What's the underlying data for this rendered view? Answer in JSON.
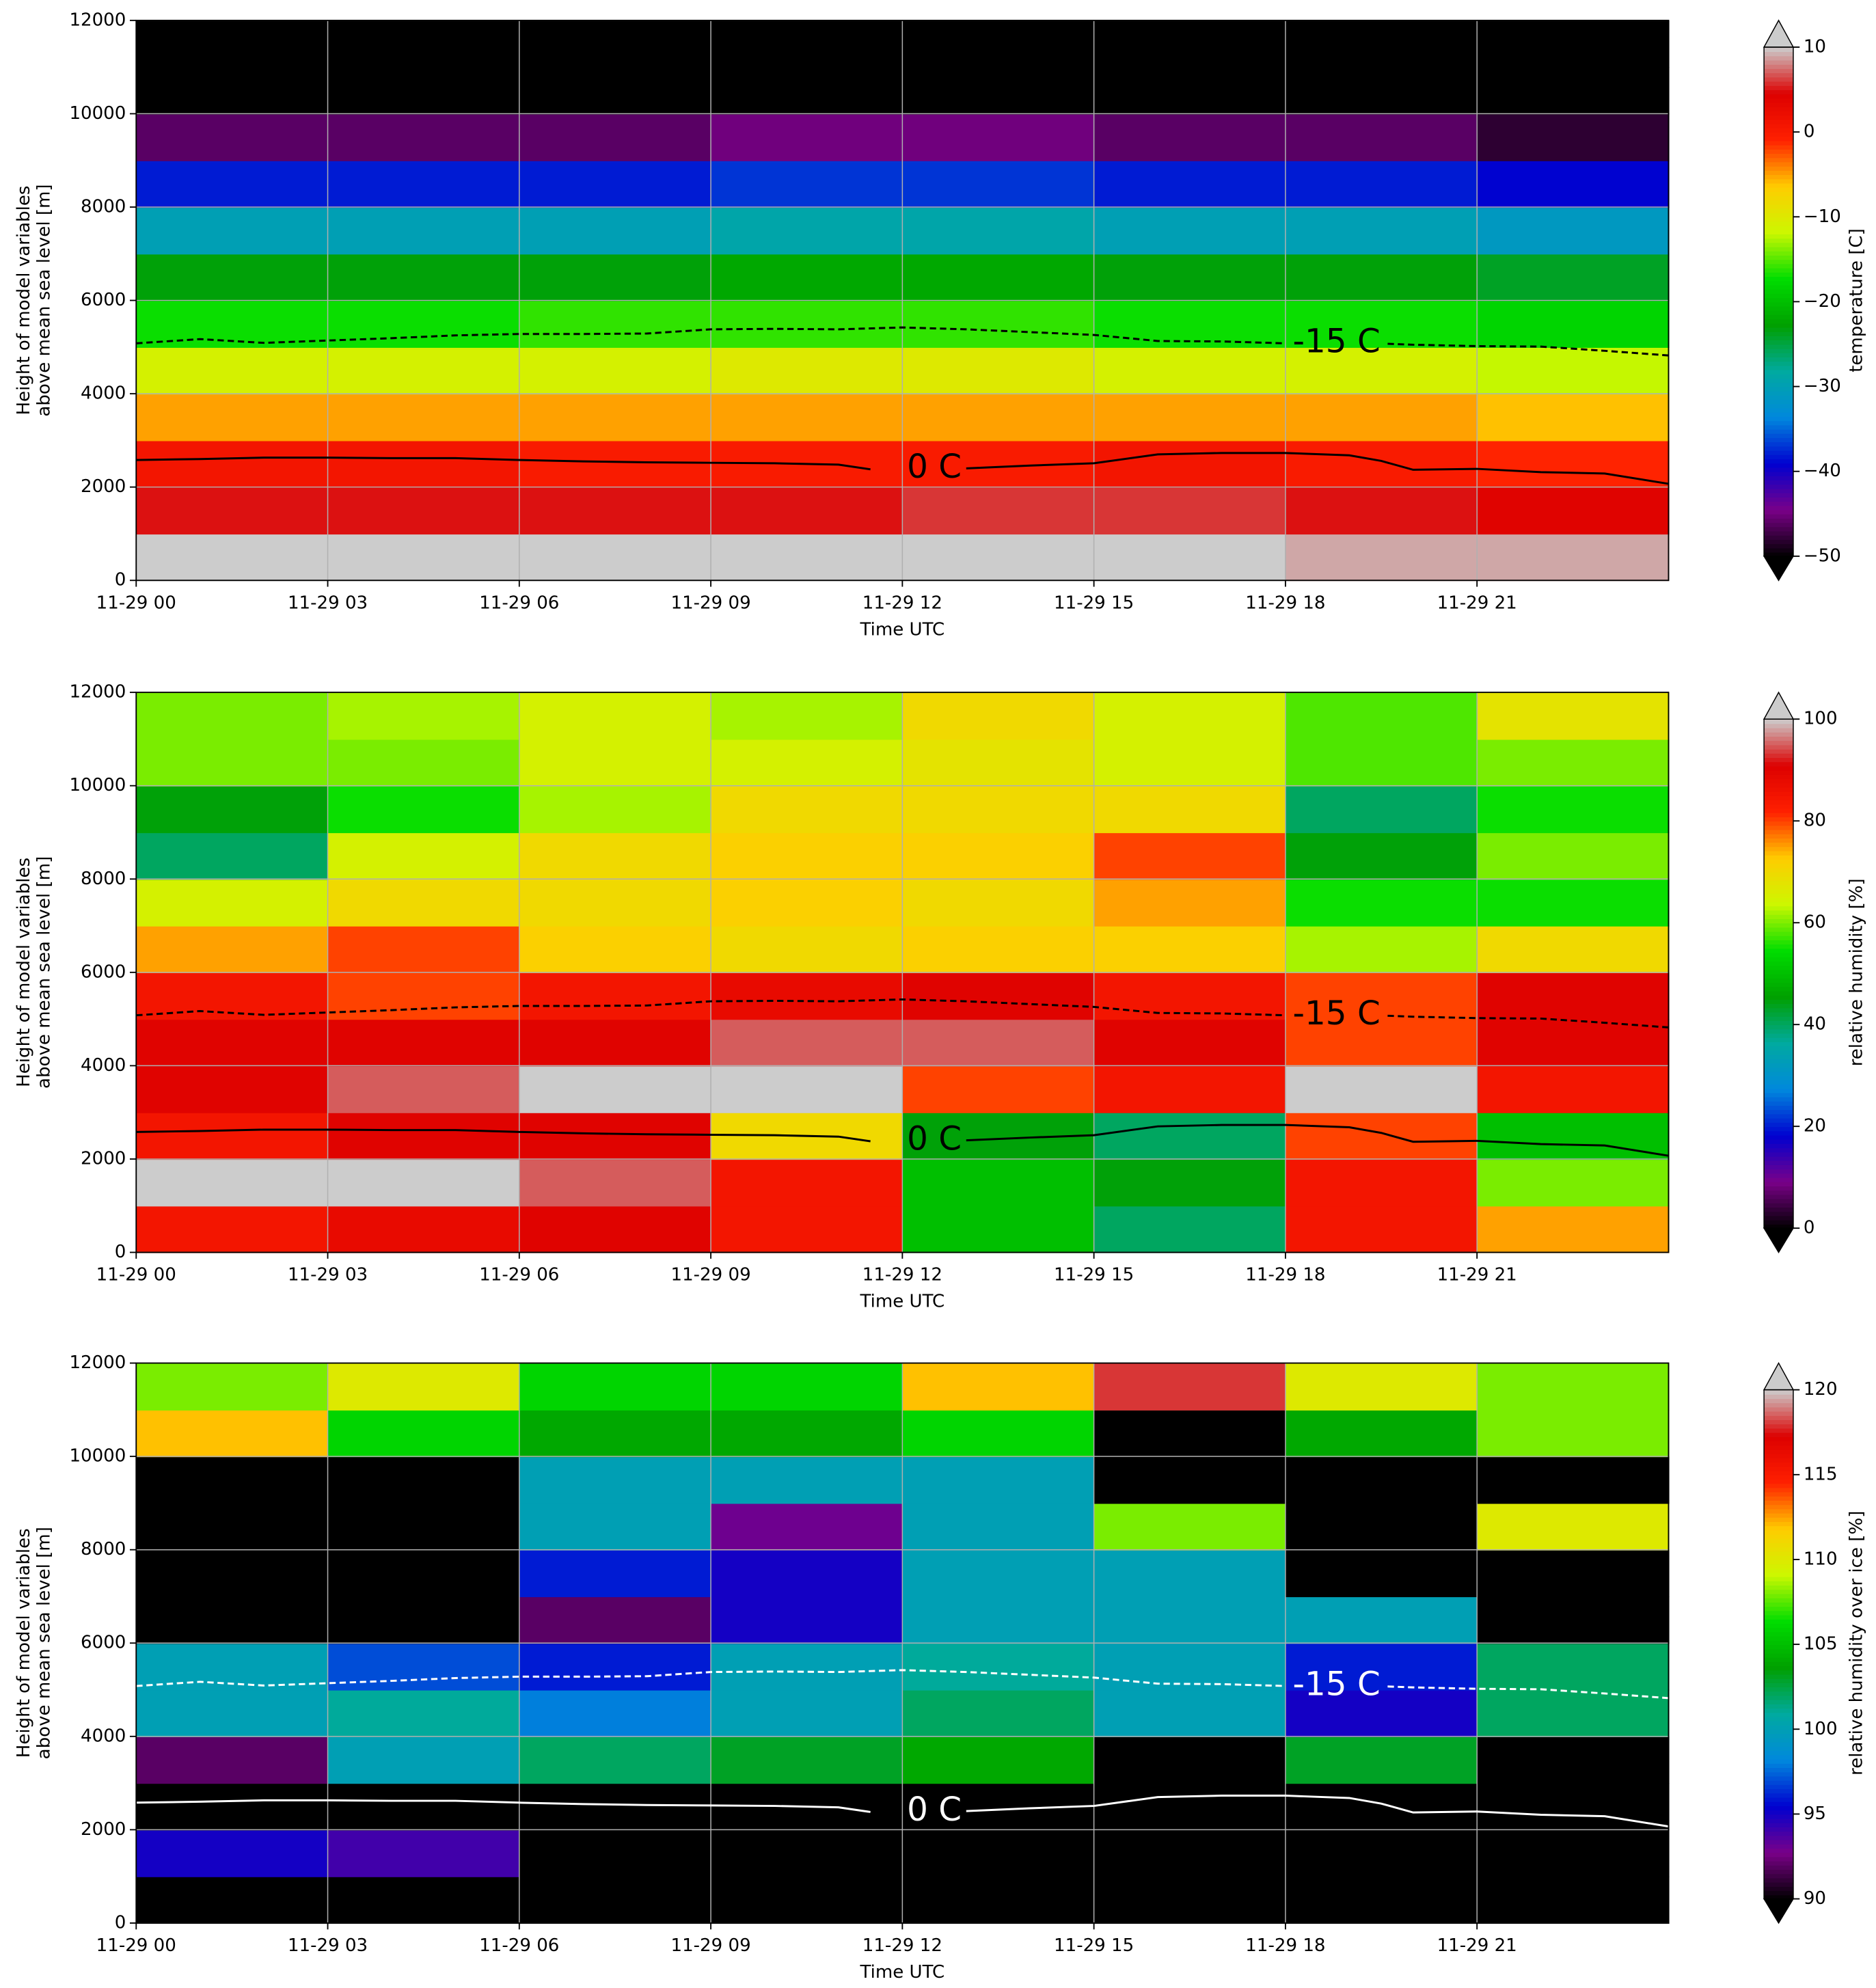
{
  "chart_data": [
    {
      "type": "heatmap",
      "xlabel": "Time UTC",
      "ylabel": [
        "Height of model variables",
        "above mean sea level [m]"
      ],
      "xlim": [
        0,
        24
      ],
      "ylim": [
        0,
        12000
      ],
      "xticks": [
        {
          "value": 0,
          "label": "11-29 00"
        },
        {
          "value": 3,
          "label": "11-29 03"
        },
        {
          "value": 6,
          "label": "11-29 06"
        },
        {
          "value": 9,
          "label": "11-29 09"
        },
        {
          "value": 12,
          "label": "11-29 12"
        },
        {
          "value": 15,
          "label": "11-29 15"
        },
        {
          "value": 18,
          "label": "11-29 18"
        },
        {
          "value": 21,
          "label": "11-29 21"
        }
      ],
      "yticks": [
        0,
        2000,
        4000,
        6000,
        8000,
        10000,
        12000
      ],
      "grid": true,
      "x_bins": [
        0,
        3,
        6,
        9,
        12,
        15,
        18,
        21,
        24
      ],
      "y_bins": [
        0,
        1000,
        2000,
        3000,
        4000,
        5000,
        6000,
        7000,
        8000,
        9000,
        10000,
        11000,
        12000
      ],
      "z": [
        [
          11,
          11,
          11,
          11,
          12,
          11,
          9,
          9
        ],
        [
          5,
          5,
          5,
          5,
          6,
          6,
          5,
          4
        ],
        [
          1,
          1,
          0,
          0,
          0,
          1,
          0,
          -1
        ],
        [
          -5,
          -5,
          -5,
          -5,
          -5,
          -5,
          -5,
          -6
        ],
        [
          -11,
          -11,
          -11,
          -10,
          -10,
          -11,
          -11,
          -12
        ],
        [
          -17,
          -17,
          -16,
          -16,
          -16,
          -17,
          -17,
          -18
        ],
        [
          -23,
          -23,
          -23,
          -22,
          -22,
          -23,
          -23,
          -24
        ],
        [
          -30,
          -30,
          -30,
          -29,
          -29,
          -30,
          -30,
          -31
        ],
        [
          -38,
          -38,
          -38,
          -37,
          -37,
          -38,
          -38,
          -39
        ],
        [
          -46,
          -46,
          -46,
          -45,
          -45,
          -46,
          -46,
          -48
        ],
        [
          -55,
          -55,
          -55,
          -55,
          -55,
          -55,
          -55,
          -55
        ],
        [
          -58,
          -58,
          -58,
          -58,
          -58,
          -58,
          -58,
          -58
        ]
      ],
      "colorbar": {
        "label": "temperature [C]",
        "clim": [
          -50,
          10
        ],
        "ticks": [
          {
            "value": -50,
            "label": "−50"
          },
          {
            "value": -40,
            "label": "−40"
          },
          {
            "value": -30,
            "label": "−30"
          },
          {
            "value": -20,
            "label": "−20"
          },
          {
            "value": -10,
            "label": "−10"
          },
          0,
          10
        ],
        "colors": [
          "#000000",
          "#7a0088",
          "#0000d0",
          "#0088dd",
          "#00aaa0",
          "#00a000",
          "#00dd00",
          "#ccf800",
          "#ffcc00",
          "#ff2000",
          "#dd0000",
          "#cccccc"
        ],
        "under": "#000000",
        "over": "#cccccc"
      },
      "contours": [
        {
          "label": "0 C",
          "color": "#000000",
          "dashed": false,
          "x": [
            0,
            1,
            2,
            3,
            4,
            5,
            6,
            7,
            8,
            9,
            10,
            11,
            11.5,
            12.5,
            13,
            14,
            15,
            16,
            17,
            18,
            19,
            19.5,
            20,
            21,
            22,
            23,
            24
          ],
          "y": [
            2580,
            2600,
            2630,
            2630,
            2620,
            2620,
            2580,
            2550,
            2530,
            2520,
            2510,
            2480,
            2380,
            null,
            2400,
            2460,
            2510,
            2700,
            2730,
            2730,
            2680,
            2560,
            2370,
            2390,
            2320,
            2290,
            2070
          ]
        },
        {
          "label": "-15 C",
          "color": "#000000",
          "dashed": true,
          "x": [
            0,
            1,
            2,
            3,
            4,
            5,
            6,
            7,
            8,
            9,
            10,
            11,
            12,
            13,
            14,
            15,
            16,
            17,
            18,
            18.8,
            19.6,
            20,
            21,
            22,
            23,
            24
          ],
          "y": [
            5080,
            5170,
            5090,
            5140,
            5190,
            5250,
            5280,
            5280,
            5290,
            5380,
            5390,
            5380,
            5420,
            5380,
            5320,
            5260,
            5130,
            5120,
            5080,
            null,
            5070,
            5050,
            5020,
            5010,
            4920,
            4820
          ]
        }
      ]
    },
    {
      "type": "heatmap",
      "xlabel": "Time UTC",
      "ylabel": [
        "Height of model variables",
        "above mean sea level [m]"
      ],
      "xlim": [
        0,
        24
      ],
      "ylim": [
        0,
        12000
      ],
      "xticks": [
        {
          "value": 0,
          "label": "11-29 00"
        },
        {
          "value": 3,
          "label": "11-29 03"
        },
        {
          "value": 6,
          "label": "11-29 06"
        },
        {
          "value": 9,
          "label": "11-29 09"
        },
        {
          "value": 12,
          "label": "11-29 12"
        },
        {
          "value": 15,
          "label": "11-29 15"
        },
        {
          "value": 18,
          "label": "11-29 18"
        },
        {
          "value": 21,
          "label": "11-29 21"
        }
      ],
      "yticks": [
        0,
        2000,
        4000,
        6000,
        8000,
        10000,
        12000
      ],
      "grid": true,
      "x_bins": [
        0,
        3,
        6,
        9,
        12,
        15,
        18,
        21,
        24
      ],
      "y_bins": [
        0,
        1000,
        2000,
        3000,
        4000,
        5000,
        6000,
        7000,
        8000,
        9000,
        10000,
        11000,
        12000
      ],
      "z": [
        [
          85,
          88,
          90,
          85,
          50,
          40,
          85,
          75
        ],
        [
          100,
          100,
          95,
          85,
          50,
          45,
          85,
          60
        ],
        [
          85,
          90,
          90,
          70,
          45,
          40,
          80,
          50
        ],
        [
          90,
          95,
          100,
          100,
          80,
          85,
          100,
          85
        ],
        [
          90,
          90,
          90,
          95,
          95,
          90,
          80,
          90
        ],
        [
          85,
          80,
          85,
          88,
          90,
          85,
          80,
          90
        ],
        [
          75,
          80,
          72,
          70,
          72,
          72,
          62,
          70
        ],
        [
          65,
          70,
          70,
          72,
          70,
          75,
          55,
          55
        ],
        [
          40,
          65,
          70,
          72,
          72,
          80,
          45,
          60
        ],
        [
          45,
          55,
          62,
          70,
          70,
          70,
          40,
          55
        ],
        [
          60,
          60,
          65,
          65,
          68,
          65,
          58,
          60
        ],
        [
          60,
          62,
          65,
          62,
          70,
          65,
          58,
          68
        ]
      ],
      "colorbar": {
        "label": "relative humidity [%]",
        "clim": [
          0,
          100
        ],
        "ticks": [
          0,
          20,
          40,
          60,
          80,
          100
        ],
        "colors": [
          "#000000",
          "#7a0088",
          "#0000d0",
          "#0088dd",
          "#00aaa0",
          "#00a000",
          "#00dd00",
          "#ccf800",
          "#ffcc00",
          "#ff2000",
          "#dd0000",
          "#cccccc"
        ],
        "under": "#000000",
        "over": "#cccccc"
      },
      "contours": [
        {
          "label": "0 C",
          "color": "#000000",
          "dashed": false,
          "x": [
            0,
            1,
            2,
            3,
            4,
            5,
            6,
            7,
            8,
            9,
            10,
            11,
            11.5,
            12.5,
            13,
            14,
            15,
            16,
            17,
            18,
            19,
            19.5,
            20,
            21,
            22,
            23,
            24
          ],
          "y": [
            2580,
            2600,
            2630,
            2630,
            2620,
            2620,
            2580,
            2550,
            2530,
            2520,
            2510,
            2480,
            2380,
            null,
            2400,
            2460,
            2510,
            2700,
            2730,
            2730,
            2680,
            2560,
            2370,
            2390,
            2320,
            2290,
            2070
          ]
        },
        {
          "label": "-15 C",
          "color": "#000000",
          "dashed": true,
          "x": [
            0,
            1,
            2,
            3,
            4,
            5,
            6,
            7,
            8,
            9,
            10,
            11,
            12,
            13,
            14,
            15,
            16,
            17,
            18,
            18.8,
            19.6,
            20,
            21,
            22,
            23,
            24
          ],
          "y": [
            5080,
            5170,
            5090,
            5140,
            5190,
            5250,
            5280,
            5280,
            5290,
            5380,
            5390,
            5380,
            5420,
            5380,
            5320,
            5260,
            5130,
            5120,
            5080,
            null,
            5070,
            5050,
            5020,
            5010,
            4920,
            4820
          ]
        }
      ]
    },
    {
      "type": "heatmap",
      "xlabel": "Time UTC",
      "ylabel": [
        "Height of model variables",
        "above mean sea level [m]"
      ],
      "xlim": [
        0,
        24
      ],
      "ylim": [
        0,
        12000
      ],
      "xticks": [
        {
          "value": 0,
          "label": "11-29 00"
        },
        {
          "value": 3,
          "label": "11-29 03"
        },
        {
          "value": 6,
          "label": "11-29 06"
        },
        {
          "value": 9,
          "label": "11-29 09"
        },
        {
          "value": 12,
          "label": "11-29 12"
        },
        {
          "value": 15,
          "label": "11-29 15"
        },
        {
          "value": 18,
          "label": "11-29 18"
        },
        {
          "value": 21,
          "label": "11-29 21"
        }
      ],
      "yticks": [
        0,
        2000,
        4000,
        6000,
        8000,
        10000,
        12000
      ],
      "grid": true,
      "x_bins": [
        0,
        3,
        6,
        9,
        12,
        15,
        18,
        21,
        24
      ],
      "y_bins": [
        0,
        1000,
        2000,
        3000,
        4000,
        5000,
        6000,
        7000,
        8000,
        9000,
        10000,
        11000,
        12000
      ],
      "z": [
        [
          80,
          80,
          80,
          80,
          80,
          80,
          80,
          80
        ],
        [
          95,
          94,
          80,
          80,
          80,
          80,
          80,
          80
        ],
        [
          80,
          80,
          80,
          80,
          80,
          80,
          80,
          80
        ],
        [
          92,
          100,
          102,
          103,
          104,
          80,
          103,
          80
        ],
        [
          100,
          101,
          98,
          100,
          102,
          100,
          95,
          102
        ],
        [
          100,
          97,
          96,
          100,
          101,
          100,
          96,
          102
        ],
        [
          80,
          80,
          92,
          95,
          100,
          100,
          100,
          80
        ],
        [
          80,
          80,
          96,
          95,
          100,
          100,
          80,
          80
        ],
        [
          80,
          80,
          100,
          93,
          100,
          108,
          80,
          110
        ],
        [
          80,
          85,
          100,
          100,
          100,
          80,
          80,
          80
        ],
        [
          112,
          106,
          104,
          104,
          106,
          80,
          104,
          108
        ],
        [
          108,
          110,
          106,
          106,
          112,
          118,
          110,
          108
        ]
      ],
      "colorbar": {
        "label": "relative humidity over ice [%]",
        "clim": [
          90,
          120
        ],
        "ticks": [
          90,
          95,
          100,
          105,
          110,
          115,
          120
        ],
        "colors": [
          "#000000",
          "#7a0088",
          "#0000d0",
          "#0088dd",
          "#00aaa0",
          "#00a000",
          "#00dd00",
          "#ccf800",
          "#ffcc00",
          "#ff2000",
          "#dd0000",
          "#cccccc"
        ],
        "under": "#000000",
        "over": "#cccccc"
      },
      "contours": [
        {
          "label": "0 C",
          "color": "#ffffff",
          "dashed": false,
          "x": [
            0,
            1,
            2,
            3,
            4,
            5,
            6,
            7,
            8,
            9,
            10,
            11,
            11.5,
            12.5,
            13,
            14,
            15,
            16,
            17,
            18,
            19,
            19.5,
            20,
            21,
            22,
            23,
            24
          ],
          "y": [
            2580,
            2600,
            2630,
            2630,
            2620,
            2620,
            2580,
            2550,
            2530,
            2520,
            2510,
            2480,
            2380,
            null,
            2400,
            2460,
            2510,
            2700,
            2730,
            2730,
            2680,
            2560,
            2370,
            2390,
            2320,
            2290,
            2070
          ]
        },
        {
          "label": "-15 C",
          "color": "#ffffff",
          "dashed": true,
          "x": [
            0,
            1,
            2,
            3,
            4,
            5,
            6,
            7,
            8,
            9,
            10,
            11,
            12,
            13,
            14,
            15,
            16,
            17,
            18,
            18.8,
            19.6,
            20,
            21,
            22,
            23,
            24
          ],
          "y": [
            5080,
            5170,
            5090,
            5140,
            5190,
            5250,
            5280,
            5280,
            5290,
            5380,
            5390,
            5380,
            5420,
            5380,
            5320,
            5260,
            5130,
            5120,
            5080,
            null,
            5070,
            5050,
            5020,
            5010,
            4920,
            4820
          ]
        }
      ]
    }
  ]
}
